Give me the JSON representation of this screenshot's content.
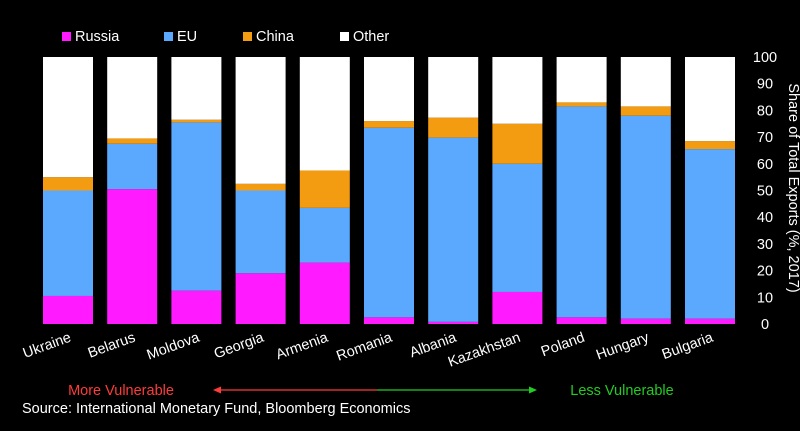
{
  "chart_data": {
    "type": "bar",
    "stacked": true,
    "categories": [
      "Ukraine",
      "Belarus",
      "Moldova",
      "Georgia",
      "Armenia",
      "Romania",
      "Albania",
      "Kazakhstan",
      "Poland",
      "Hungary",
      "Bulgaria"
    ],
    "series": [
      {
        "name": "Russia",
        "color": "#ff1aff",
        "values": [
          10.5,
          50.5,
          12.5,
          19,
          23,
          2.5,
          0.8,
          12,
          2.5,
          2,
          2
        ]
      },
      {
        "name": "EU",
        "color": "#5aa9ff",
        "values": [
          39.5,
          17,
          63,
          31,
          20.5,
          71,
          69,
          48,
          79,
          76,
          63.5
        ]
      },
      {
        "name": "China",
        "color": "#f39c12",
        "values": [
          5,
          2,
          1,
          2.5,
          14,
          2.5,
          7.5,
          15,
          1.5,
          3.5,
          3
        ]
      },
      {
        "name": "Other",
        "color": "#ffffff",
        "values": [
          45,
          30.5,
          23.5,
          47.5,
          42.5,
          24,
          22.7,
          25,
          17,
          18.5,
          31.5
        ]
      }
    ],
    "ylabel": "Share of Total Exports (%, 2017)",
    "ylim": [
      0,
      100
    ],
    "yticks": [
      0,
      10,
      20,
      30,
      40,
      50,
      60,
      70,
      80,
      90,
      100
    ],
    "legend_position": "top-left",
    "grid": false
  },
  "annotations": {
    "left_label": "More Vulnerable",
    "right_label": "Less Vulnerable",
    "left_color": "#ff3b3b",
    "right_color": "#22cc22"
  },
  "source": "Source: International Monetary Fund, Bloomberg Economics"
}
